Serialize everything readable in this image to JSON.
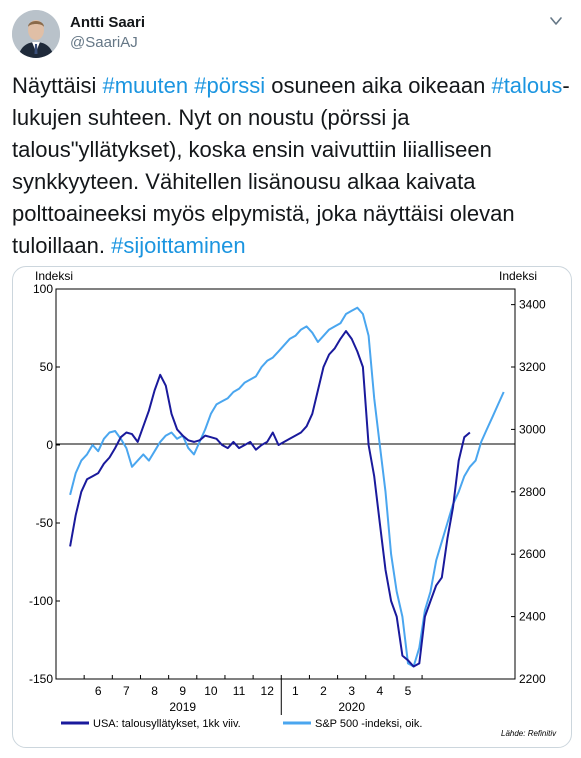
{
  "author": {
    "name": "Antti Saari",
    "handle": "@SaariAJ"
  },
  "tweet": {
    "parts": [
      {
        "text": "Näyttäisi ",
        "tag": false
      },
      {
        "text": "#muuten",
        "tag": true
      },
      {
        "text": " ",
        "tag": false
      },
      {
        "text": "#pörssi",
        "tag": true
      },
      {
        "text": " osuneen aika oikeaan ",
        "tag": false
      },
      {
        "text": "#talous",
        "tag": true
      },
      {
        "text": "-lukujen suhteen. Nyt on noustu (pörssi ja talous\"yllätykset), koska ensin vaivuttiin liialliseen synkkyyteen. Vähitellen lisänousu alkaa kaivata polttoaineeksi myös elpymistä, joka näyttäisi olevan tuloillaan. ",
        "tag": false
      },
      {
        "text": "#sijoittaminen",
        "tag": true
      }
    ]
  },
  "chart_data": {
    "type": "line",
    "left_axis_label": "Indeksi",
    "right_axis_label": "Indeksi",
    "left_ylim": [
      -150,
      100
    ],
    "left_ticks": [
      "100",
      "50",
      "0",
      "-50",
      "-100",
      "-150"
    ],
    "right_ylim": [
      2200,
      3450
    ],
    "right_ticks": [
      "3400",
      "3200",
      "3000",
      "2800",
      "2600",
      "2400",
      "2200"
    ],
    "x_month_labels": [
      "6",
      "7",
      "8",
      "9",
      "10",
      "11",
      "12",
      "1",
      "2",
      "3",
      "4",
      "5"
    ],
    "x_year_labels": [
      "2019",
      "2020"
    ],
    "source": "Lähde: Refinitiv",
    "series": [
      {
        "name": "USA: talousyllätykset, 1kk viiv.",
        "color": "#1a1a9c",
        "axis": "left",
        "points": [
          [
            5.0,
            -65
          ],
          [
            5.2,
            -45
          ],
          [
            5.4,
            -30
          ],
          [
            5.6,
            -22
          ],
          [
            5.8,
            -20
          ],
          [
            6.0,
            -18
          ],
          [
            6.2,
            -12
          ],
          [
            6.4,
            -8
          ],
          [
            6.6,
            -2
          ],
          [
            6.8,
            5
          ],
          [
            7.0,
            8
          ],
          [
            7.2,
            7
          ],
          [
            7.4,
            2
          ],
          [
            7.6,
            12
          ],
          [
            7.8,
            22
          ],
          [
            8.0,
            35
          ],
          [
            8.2,
            45
          ],
          [
            8.4,
            38
          ],
          [
            8.6,
            20
          ],
          [
            8.8,
            10
          ],
          [
            9.0,
            6
          ],
          [
            9.2,
            3
          ],
          [
            9.4,
            2
          ],
          [
            9.6,
            3
          ],
          [
            9.8,
            6
          ],
          [
            10.0,
            5
          ],
          [
            10.2,
            4
          ],
          [
            10.4,
            0
          ],
          [
            10.6,
            -2
          ],
          [
            10.8,
            2
          ],
          [
            11.0,
            -2
          ],
          [
            11.2,
            0
          ],
          [
            11.4,
            2
          ],
          [
            11.6,
            -3
          ],
          [
            11.8,
            0
          ],
          [
            12.0,
            2
          ],
          [
            12.2,
            8
          ],
          [
            12.4,
            0
          ],
          [
            12.6,
            2
          ],
          [
            12.8,
            4
          ],
          [
            13.0,
            6
          ],
          [
            13.2,
            8
          ],
          [
            13.4,
            12
          ],
          [
            13.6,
            20
          ],
          [
            13.8,
            35
          ],
          [
            14.0,
            50
          ],
          [
            14.2,
            58
          ],
          [
            14.4,
            62
          ],
          [
            14.6,
            68
          ],
          [
            14.8,
            73
          ],
          [
            15.0,
            68
          ],
          [
            15.2,
            60
          ],
          [
            15.4,
            50
          ],
          [
            15.6,
            0
          ],
          [
            15.8,
            -20
          ],
          [
            16.0,
            -50
          ],
          [
            16.2,
            -80
          ],
          [
            16.4,
            -100
          ],
          [
            16.6,
            -110
          ],
          [
            16.8,
            -135
          ],
          [
            17.0,
            -138
          ],
          [
            17.2,
            -142
          ],
          [
            17.4,
            -140
          ],
          [
            17.6,
            -110
          ],
          [
            17.8,
            -100
          ],
          [
            18.0,
            -90
          ],
          [
            18.2,
            -85
          ],
          [
            18.4,
            -60
          ],
          [
            18.6,
            -40
          ],
          [
            18.8,
            -10
          ],
          [
            19.0,
            5
          ],
          [
            19.2,
            8
          ]
        ]
      },
      {
        "name": "S&P 500 -indeksi, oik.",
        "color": "#4aa6ef",
        "axis": "right",
        "points": [
          [
            5.0,
            2790
          ],
          [
            5.2,
            2860
          ],
          [
            5.4,
            2900
          ],
          [
            5.6,
            2920
          ],
          [
            5.8,
            2950
          ],
          [
            6.0,
            2930
          ],
          [
            6.2,
            2970
          ],
          [
            6.4,
            2990
          ],
          [
            6.6,
            2995
          ],
          [
            6.8,
            2970
          ],
          [
            7.0,
            2940
          ],
          [
            7.2,
            2880
          ],
          [
            7.4,
            2900
          ],
          [
            7.6,
            2920
          ],
          [
            7.8,
            2900
          ],
          [
            8.0,
            2930
          ],
          [
            8.2,
            2960
          ],
          [
            8.4,
            2980
          ],
          [
            8.6,
            2990
          ],
          [
            8.8,
            2970
          ],
          [
            9.0,
            2980
          ],
          [
            9.2,
            2940
          ],
          [
            9.4,
            2920
          ],
          [
            9.6,
            2960
          ],
          [
            9.8,
            3000
          ],
          [
            10.0,
            3050
          ],
          [
            10.2,
            3080
          ],
          [
            10.4,
            3090
          ],
          [
            10.6,
            3100
          ],
          [
            10.8,
            3120
          ],
          [
            11.0,
            3130
          ],
          [
            11.2,
            3150
          ],
          [
            11.4,
            3160
          ],
          [
            11.6,
            3170
          ],
          [
            11.8,
            3200
          ],
          [
            12.0,
            3220
          ],
          [
            12.2,
            3230
          ],
          [
            12.4,
            3250
          ],
          [
            12.6,
            3270
          ],
          [
            12.8,
            3290
          ],
          [
            13.0,
            3300
          ],
          [
            13.2,
            3320
          ],
          [
            13.4,
            3330
          ],
          [
            13.6,
            3310
          ],
          [
            13.8,
            3280
          ],
          [
            14.0,
            3300
          ],
          [
            14.2,
            3320
          ],
          [
            14.4,
            3330
          ],
          [
            14.6,
            3340
          ],
          [
            14.8,
            3370
          ],
          [
            15.0,
            3380
          ],
          [
            15.2,
            3390
          ],
          [
            15.4,
            3370
          ],
          [
            15.6,
            3300
          ],
          [
            15.8,
            3100
          ],
          [
            16.0,
            2950
          ],
          [
            16.2,
            2800
          ],
          [
            16.4,
            2600
          ],
          [
            16.6,
            2480
          ],
          [
            16.8,
            2400
          ],
          [
            17.0,
            2250
          ],
          [
            17.2,
            2240
          ],
          [
            17.4,
            2300
          ],
          [
            17.6,
            2420
          ],
          [
            17.8,
            2480
          ],
          [
            18.0,
            2580
          ],
          [
            18.2,
            2640
          ],
          [
            18.4,
            2700
          ],
          [
            18.6,
            2760
          ],
          [
            18.8,
            2800
          ],
          [
            19.0,
            2850
          ],
          [
            19.2,
            2880
          ],
          [
            19.4,
            2900
          ],
          [
            19.6,
            2960
          ],
          [
            19.8,
            3000
          ],
          [
            20.0,
            3040
          ],
          [
            20.2,
            3080
          ],
          [
            20.4,
            3120
          ]
        ]
      }
    ]
  }
}
